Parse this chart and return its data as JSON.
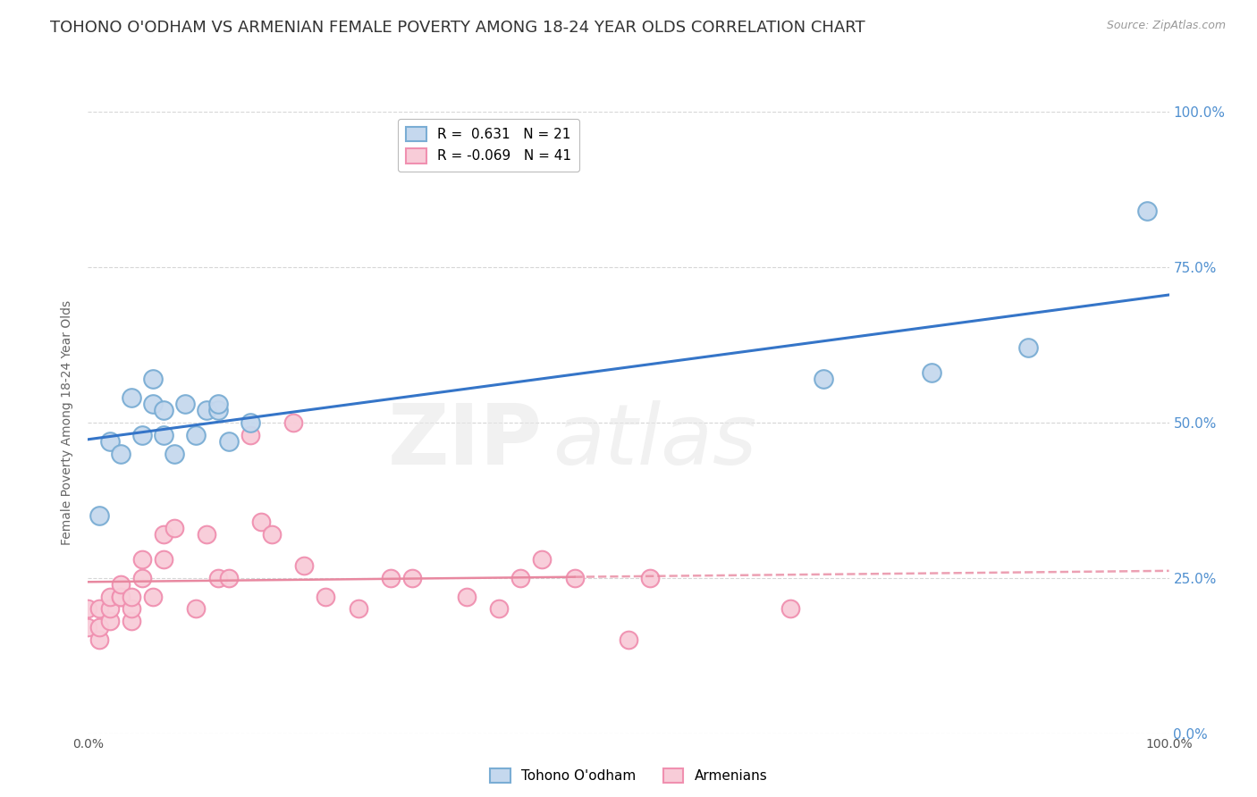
{
  "title": "TOHONO O'ODHAM VS ARMENIAN FEMALE POVERTY AMONG 18-24 YEAR OLDS CORRELATION CHART",
  "source": "Source: ZipAtlas.com",
  "ylabel": "Female Poverty Among 18-24 Year Olds",
  "blue_label": "Tohono O'odham",
  "pink_label": "Armenians",
  "blue_R": 0.631,
  "blue_N": 21,
  "pink_R": -0.069,
  "pink_N": 41,
  "blue_color": "#c5d8ee",
  "blue_edge": "#7aadd4",
  "pink_color": "#f8ccd8",
  "pink_edge": "#f090b0",
  "blue_line_color": "#3575c8",
  "pink_line_color": "#e888a0",
  "background_color": "#ffffff",
  "watermark_text": "ZIP",
  "watermark_text2": "atlas",
  "grid_color": "#cccccc",
  "right_label_color": "#5090d0",
  "title_fontsize": 13,
  "axis_label_fontsize": 10,
  "blue_x": [
    1,
    2,
    3,
    4,
    5,
    6,
    6,
    7,
    7,
    8,
    9,
    10,
    11,
    12,
    12,
    13,
    15,
    68,
    78,
    87,
    98
  ],
  "blue_y": [
    35,
    47,
    45,
    54,
    48,
    53,
    57,
    52,
    48,
    45,
    53,
    48,
    52,
    52,
    53,
    47,
    50,
    57,
    58,
    62,
    84
  ],
  "pink_x": [
    0,
    0,
    1,
    1,
    1,
    2,
    2,
    2,
    3,
    3,
    3,
    4,
    4,
    4,
    5,
    5,
    6,
    7,
    7,
    8,
    10,
    11,
    12,
    13,
    15,
    16,
    17,
    19,
    20,
    22,
    25,
    28,
    30,
    35,
    38,
    40,
    42,
    45,
    50,
    52,
    65
  ],
  "pink_y": [
    17,
    20,
    15,
    17,
    20,
    18,
    20,
    22,
    22,
    22,
    24,
    18,
    20,
    22,
    25,
    28,
    22,
    28,
    32,
    33,
    20,
    32,
    25,
    25,
    48,
    34,
    32,
    50,
    27,
    22,
    20,
    25,
    25,
    22,
    20,
    25,
    28,
    25,
    15,
    25,
    20
  ],
  "xlim": [
    0,
    100
  ],
  "ylim": [
    0,
    100
  ],
  "ytick_values": [
    0,
    25,
    50,
    75,
    100
  ],
  "ytick_pct": [
    "0.0%",
    "25.0%",
    "50.0%",
    "75.0%",
    "100.0%"
  ],
  "xtick_values": [
    0,
    100
  ],
  "xtick_labels": [
    "0.0%",
    "100.0%"
  ]
}
